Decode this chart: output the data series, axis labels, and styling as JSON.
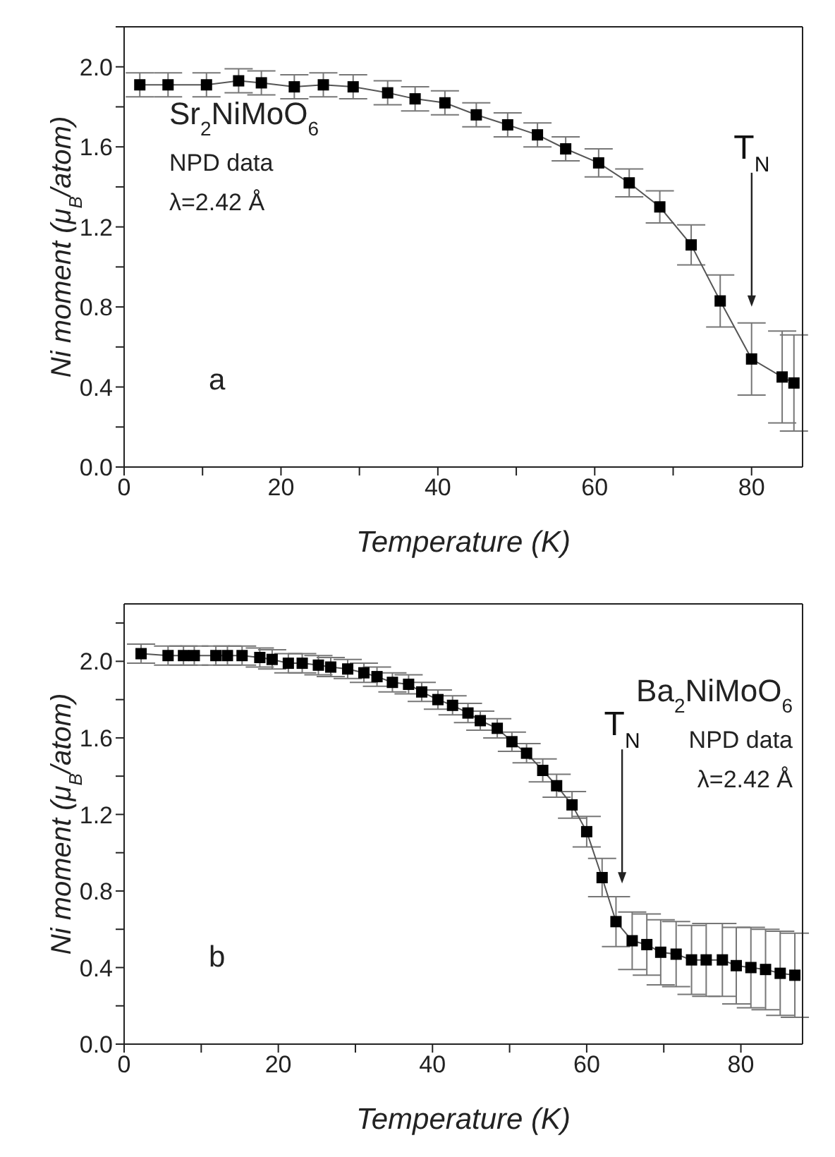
{
  "chart_data": [
    {
      "type": "line",
      "xlabel": "Temperature (K)",
      "ylabel": "Ni moment (μ$_{B}$/atom)",
      "color": "#000000",
      "marker": "square",
      "line_style": "solid",
      "xlim": [
        0,
        86.5
      ],
      "xticks": [
        0,
        {
          "value": 10,
          "label": null
        },
        20,
        {
          "value": 30,
          "label": null
        },
        40,
        {
          "value": 50,
          "label": null
        },
        60,
        {
          "value": 70,
          "label": null
        },
        80
      ],
      "ylim": [
        0,
        2.2
      ],
      "yticks": [
        {
          "value": 0,
          "label": "0.0"
        },
        {
          "value": 0.2,
          "label": null
        },
        {
          "value": 0.4,
          "label": "0.4"
        },
        {
          "value": 0.6,
          "label": null
        },
        {
          "value": 0.8,
          "label": "0.8"
        },
        {
          "value": 1,
          "label": null
        },
        {
          "value": 1.2,
          "label": "1.2"
        },
        {
          "value": 1.4,
          "label": null
        },
        {
          "value": 1.6,
          "label": "1.6"
        },
        {
          "value": 1.8,
          "label": null
        },
        {
          "value": 2,
          "label": "2.0"
        },
        {
          "value": 2.2,
          "label": null
        }
      ],
      "x": [
        2.0,
        5.6,
        10.5,
        14.6,
        17.5,
        21.7,
        25.4,
        29.2,
        33.6,
        37.1,
        40.9,
        44.9,
        48.9,
        52.7,
        56.3,
        60.5,
        64.4,
        68.3,
        72.3,
        76.0,
        80.0,
        83.9,
        85.4
      ],
      "values": [
        1.91,
        1.91,
        1.91,
        1.93,
        1.92,
        1.9,
        1.91,
        1.9,
        1.87,
        1.84,
        1.82,
        1.76,
        1.71,
        1.66,
        1.59,
        1.52,
        1.42,
        1.3,
        1.11,
        0.83,
        0.54,
        0.45,
        0.42
      ],
      "errors": [
        0.06,
        0.06,
        0.06,
        0.06,
        0.06,
        0.06,
        0.06,
        0.06,
        0.06,
        0.06,
        0.06,
        0.06,
        0.06,
        0.06,
        0.06,
        0.07,
        0.07,
        0.08,
        0.1,
        0.13,
        0.18,
        0.23,
        0.24
      ],
      "annotations": [
        "Sr$_{2}$NiMoO$_{6}$",
        "NPD data",
        "λ=2.42 Å",
        "a",
        "T$_{N}$"
      ]
    },
    {
      "type": "line",
      "xlabel": "Temperature (K)",
      "ylabel": "Ni moment (μ$_{B}$/atom)",
      "color": "#000000",
      "marker": "square",
      "line_style": "solid",
      "xlim": [
        0,
        88
      ],
      "xticks": [
        0,
        {
          "value": 10,
          "label": null
        },
        20,
        {
          "value": 30,
          "label": null
        },
        40,
        {
          "value": 50,
          "label": null
        },
        60,
        {
          "value": 70,
          "label": null
        },
        80
      ],
      "ylim": [
        0,
        2.3
      ],
      "yticks": [
        {
          "value": 0,
          "label": "0.0"
        },
        {
          "value": 0.2,
          "label": null
        },
        {
          "value": 0.4,
          "label": "0.4"
        },
        {
          "value": 0.6,
          "label": null
        },
        {
          "value": 0.8,
          "label": "0.8"
        },
        {
          "value": 1,
          "label": null
        },
        {
          "value": 1.2,
          "label": "1.2"
        },
        {
          "value": 1.4,
          "label": null
        },
        {
          "value": 1.6,
          "label": "1.6"
        },
        {
          "value": 1.8,
          "label": null
        },
        {
          "value": 2,
          "label": "2.0"
        },
        {
          "value": 2.2,
          "label": null
        }
      ],
      "x": [
        2.2,
        5.7,
        7.7,
        9.1,
        11.9,
        13.4,
        15.3,
        17.6,
        19.2,
        21.3,
        23.1,
        25.2,
        26.8,
        29.0,
        31.1,
        32.8,
        34.8,
        36.9,
        38.6,
        40.7,
        42.6,
        44.6,
        46.2,
        48.4,
        50.3,
        52.2,
        54.3,
        56.1,
        58.1,
        60.0,
        62.0,
        63.8,
        65.9,
        67.8,
        69.6,
        71.6,
        73.6,
        75.5,
        77.6,
        79.4,
        81.3,
        83.2,
        85.1,
        87.0
      ],
      "values": [
        2.04,
        2.03,
        2.03,
        2.03,
        2.03,
        2.03,
        2.03,
        2.02,
        2.01,
        1.99,
        1.99,
        1.98,
        1.97,
        1.96,
        1.94,
        1.92,
        1.89,
        1.88,
        1.84,
        1.8,
        1.77,
        1.73,
        1.69,
        1.65,
        1.58,
        1.52,
        1.43,
        1.35,
        1.25,
        1.11,
        0.87,
        0.64,
        0.54,
        0.52,
        0.48,
        0.47,
        0.44,
        0.44,
        0.44,
        0.41,
        0.4,
        0.39,
        0.37,
        0.36
      ],
      "errors": [
        0.05,
        0.05,
        0.05,
        0.05,
        0.05,
        0.05,
        0.05,
        0.05,
        0.05,
        0.05,
        0.05,
        0.05,
        0.05,
        0.05,
        0.05,
        0.05,
        0.05,
        0.05,
        0.05,
        0.05,
        0.05,
        0.05,
        0.05,
        0.05,
        0.05,
        0.05,
        0.06,
        0.06,
        0.07,
        0.08,
        0.1,
        0.13,
        0.15,
        0.16,
        0.17,
        0.17,
        0.18,
        0.19,
        0.19,
        0.2,
        0.21,
        0.21,
        0.22,
        0.22
      ],
      "annotations": [
        "Ba$_{2}$NiMoO$_{6}$",
        "NPD data",
        "λ=2.42 Å",
        "b",
        "T$_{N}$"
      ]
    }
  ]
}
